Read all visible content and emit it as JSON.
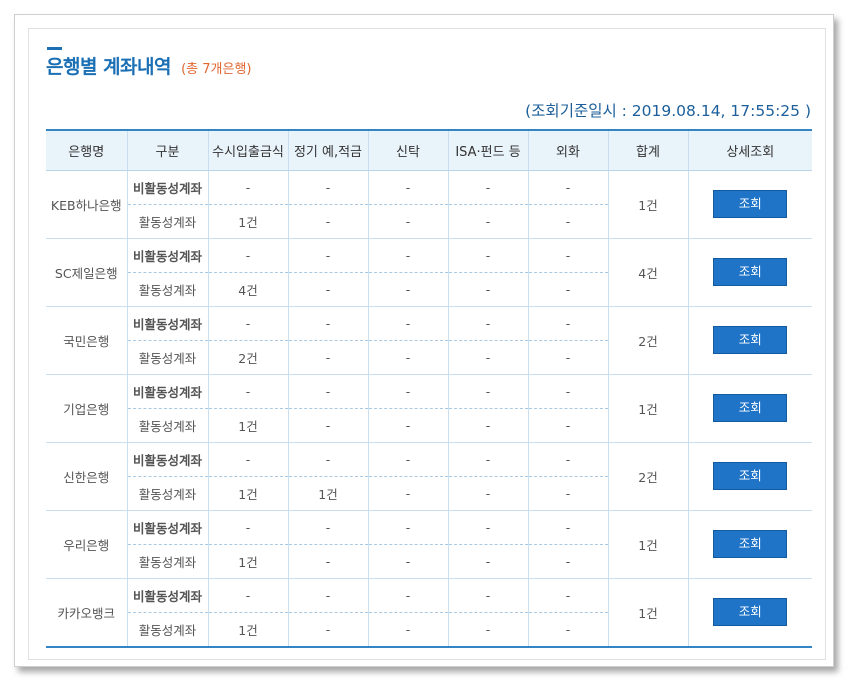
{
  "header": {
    "title": "은행별 계좌내역",
    "subtitle": "(총 7개은행)",
    "basis": "(조회기준일시 : 2019.08.14, 17:55:25 )"
  },
  "columns": [
    "은행명",
    "구분",
    "수시입출금식",
    "정기 예,적금",
    "신탁",
    "ISA·펀드 등",
    "외화",
    "합계",
    "상세조회"
  ],
  "banks": [
    {
      "name": "KEB하나은행",
      "total": "1건",
      "button": "조회",
      "dormant": {
        "type": "비활동성계좌",
        "values": [
          "-",
          "-",
          "-",
          "-",
          "-"
        ]
      },
      "active": {
        "type": "활동성계좌",
        "values": [
          "1건",
          "-",
          "-",
          "-",
          "-"
        ]
      }
    },
    {
      "name": "SC제일은행",
      "total": "4건",
      "button": "조회",
      "dormant": {
        "type": "비활동성계좌",
        "values": [
          "-",
          "-",
          "-",
          "-",
          "-"
        ]
      },
      "active": {
        "type": "활동성계좌",
        "values": [
          "4건",
          "-",
          "-",
          "-",
          "-"
        ]
      }
    },
    {
      "name": "국민은행",
      "total": "2건",
      "button": "조회",
      "dormant": {
        "type": "비활동성계좌",
        "values": [
          "-",
          "-",
          "-",
          "-",
          "-"
        ]
      },
      "active": {
        "type": "활동성계좌",
        "values": [
          "2건",
          "-",
          "-",
          "-",
          "-"
        ]
      }
    },
    {
      "name": "기업은행",
      "total": "1건",
      "button": "조회",
      "dormant": {
        "type": "비활동성계좌",
        "values": [
          "-",
          "-",
          "-",
          "-",
          "-"
        ]
      },
      "active": {
        "type": "활동성계좌",
        "values": [
          "1건",
          "-",
          "-",
          "-",
          "-"
        ]
      }
    },
    {
      "name": "신한은행",
      "total": "2건",
      "button": "조회",
      "dormant": {
        "type": "비활동성계좌",
        "values": [
          "-",
          "-",
          "-",
          "-",
          "-"
        ]
      },
      "active": {
        "type": "활동성계좌",
        "values": [
          "1건",
          "1건",
          "-",
          "-",
          "-"
        ]
      }
    },
    {
      "name": "우리은행",
      "total": "1건",
      "button": "조회",
      "dormant": {
        "type": "비활동성계좌",
        "values": [
          "-",
          "-",
          "-",
          "-",
          "-"
        ]
      },
      "active": {
        "type": "활동성계좌",
        "values": [
          "1건",
          "-",
          "-",
          "-",
          "-"
        ]
      }
    },
    {
      "name": "카카오뱅크",
      "total": "1건",
      "button": "조회",
      "dormant": {
        "type": "비활동성계좌",
        "values": [
          "-",
          "-",
          "-",
          "-",
          "-"
        ]
      },
      "active": {
        "type": "활동성계좌",
        "values": [
          "1건",
          "-",
          "-",
          "-",
          "-"
        ]
      }
    }
  ]
}
